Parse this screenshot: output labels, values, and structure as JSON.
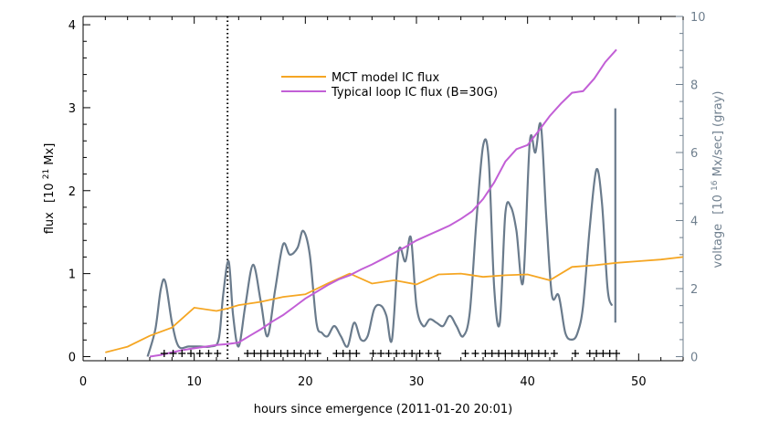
{
  "chart_data": {
    "type": "line",
    "xlabel": "hours since emergence (2011-01-20 20:01)",
    "ylabel_main": "flux",
    "ylabel_unit_prefix": "[10",
    "ylabel_unit_exp": "21",
    "ylabel_unit_suffix": " Mx]",
    "ylabel_right_main": "voltage",
    "ylabel_right_unit_prefix": "[10",
    "ylabel_right_unit_exp": "16",
    "ylabel_right_unit_suffix": " Mx/sec] (gray)",
    "xlim": [
      0,
      54
    ],
    "ylim_left": [
      -0.05,
      4.1
    ],
    "ylim_right": [
      -0.12,
      10.0
    ],
    "x_ticks": [
      0,
      10,
      20,
      30,
      40,
      50
    ],
    "x_tick_labels": [
      "0",
      "10",
      "20",
      "30",
      "40",
      "50"
    ],
    "y_ticks_left": [
      0,
      1,
      2,
      3,
      4
    ],
    "y_tick_labels_left": [
      "0",
      "1",
      "2",
      "3",
      "4"
    ],
    "y_ticks_right": [
      0,
      2,
      4,
      6,
      8,
      10
    ],
    "y_tick_labels_right": [
      "0",
      "2",
      "4",
      "6",
      "8",
      "10"
    ],
    "vertical_marker_x": 13.0,
    "colors": {
      "mct": "#f5a623",
      "typical": "#c25fd6",
      "voltage": "#6a7b8c",
      "axes": "#000000",
      "right_axis": "#6f7f8e"
    },
    "series": [
      {
        "name": "MCT model IC flux",
        "axis": "left",
        "x": [
          2,
          4,
          6,
          8,
          9,
          10,
          12,
          13,
          14,
          16,
          18,
          20,
          22,
          24,
          26,
          28,
          30,
          32,
          34,
          36,
          38,
          40,
          42,
          44,
          46,
          48,
          50,
          52,
          54
        ],
        "y": [
          0.05,
          0.12,
          0.25,
          0.35,
          0.47,
          0.59,
          0.55,
          0.58,
          0.62,
          0.66,
          0.72,
          0.75,
          0.88,
          1.0,
          0.88,
          0.92,
          0.87,
          0.99,
          1.0,
          0.96,
          0.98,
          0.99,
          0.92,
          1.08,
          1.1,
          1.13,
          1.15,
          1.17,
          1.2
        ]
      },
      {
        "name": "Typical loop IC flux (B=30G)",
        "axis": "left",
        "x": [
          6,
          7,
          8,
          9,
          10,
          11,
          12,
          13,
          14,
          15,
          16,
          17,
          18,
          19,
          20,
          21,
          22,
          23,
          24,
          25,
          26,
          27,
          28,
          29,
          30,
          31,
          32,
          33,
          34,
          35,
          36,
          37,
          38,
          39,
          40,
          41,
          42,
          43,
          44,
          45,
          46,
          47,
          48
        ],
        "y": [
          0.0,
          0.02,
          0.05,
          0.08,
          0.1,
          0.12,
          0.14,
          0.15,
          0.17,
          0.25,
          0.33,
          0.42,
          0.5,
          0.6,
          0.7,
          0.78,
          0.86,
          0.93,
          0.98,
          1.05,
          1.11,
          1.18,
          1.25,
          1.32,
          1.4,
          1.46,
          1.52,
          1.58,
          1.66,
          1.75,
          1.9,
          2.1,
          2.35,
          2.5,
          2.55,
          2.72,
          2.9,
          3.05,
          3.18,
          3.2,
          3.35,
          3.55,
          3.7
        ]
      },
      {
        "name": "voltage",
        "axis": "right",
        "x": [
          5.8,
          6.5,
          7.0,
          7.4,
          8.0,
          8.6,
          9.5,
          10.5,
          11.5,
          12.2,
          12.6,
          13.1,
          13.5,
          14.0,
          14.6,
          15.3,
          16.0,
          16.6,
          17.3,
          18.0,
          18.6,
          19.3,
          19.8,
          20.4,
          21.0,
          21.5,
          22.0,
          22.6,
          23.2,
          23.8,
          24.4,
          25.0,
          25.6,
          26.2,
          26.8,
          27.3,
          27.8,
          28.4,
          29.0,
          29.5,
          30.0,
          30.6,
          31.2,
          31.8,
          32.4,
          33.0,
          33.6,
          34.2,
          34.8,
          35.4,
          36.0,
          36.5,
          37.0,
          37.5,
          38.0,
          38.5,
          39.0,
          39.6,
          40.2,
          40.7,
          41.2,
          41.7,
          42.2,
          42.8,
          43.4,
          44.0,
          44.5,
          45.0,
          45.6,
          46.2,
          46.7,
          47.2,
          47.6
        ],
        "y": [
          0.0,
          0.8,
          2.0,
          2.2,
          1.0,
          0.3,
          0.3,
          0.3,
          0.3,
          0.5,
          1.8,
          2.8,
          1.2,
          0.3,
          1.5,
          2.7,
          1.6,
          0.6,
          2.0,
          3.3,
          3.0,
          3.2,
          3.7,
          3.0,
          1.0,
          0.7,
          0.6,
          0.9,
          0.6,
          0.3,
          1.0,
          0.5,
          0.6,
          1.4,
          1.5,
          1.2,
          0.5,
          3.1,
          2.8,
          3.5,
          1.5,
          0.9,
          1.1,
          1.0,
          0.9,
          1.2,
          0.9,
          0.6,
          1.3,
          4.0,
          6.2,
          5.8,
          2.0,
          1.0,
          4.2,
          4.4,
          3.7,
          2.2,
          6.3,
          6.0,
          6.8,
          4.0,
          1.8,
          1.8,
          0.7,
          0.5,
          0.7,
          1.5,
          3.8,
          5.5,
          4.5,
          2.0,
          1.5
        ],
        "spike": {
          "x": 47.9,
          "y_low": 1.0,
          "y_high": 7.3
        }
      }
    ],
    "event_markers_x": [
      7.3,
      8.1,
      8.9,
      9.7,
      10.5,
      11.3,
      12.1,
      14.8,
      15.4,
      16.0,
      16.6,
      17.2,
      17.8,
      18.4,
      19.0,
      19.6,
      20.4,
      21.1,
      22.8,
      23.4,
      24.0,
      24.6,
      26.1,
      26.8,
      27.5,
      28.2,
      28.9,
      29.6,
      30.3,
      31.1,
      31.9,
      34.4,
      35.3,
      36.2,
      36.8,
      37.4,
      38.0,
      38.6,
      39.2,
      39.8,
      40.4,
      41.0,
      41.6,
      42.4,
      44.3,
      45.6,
      46.2,
      46.8,
      47.4,
      48.0
    ],
    "legend": {
      "placement": "top-center"
    }
  }
}
